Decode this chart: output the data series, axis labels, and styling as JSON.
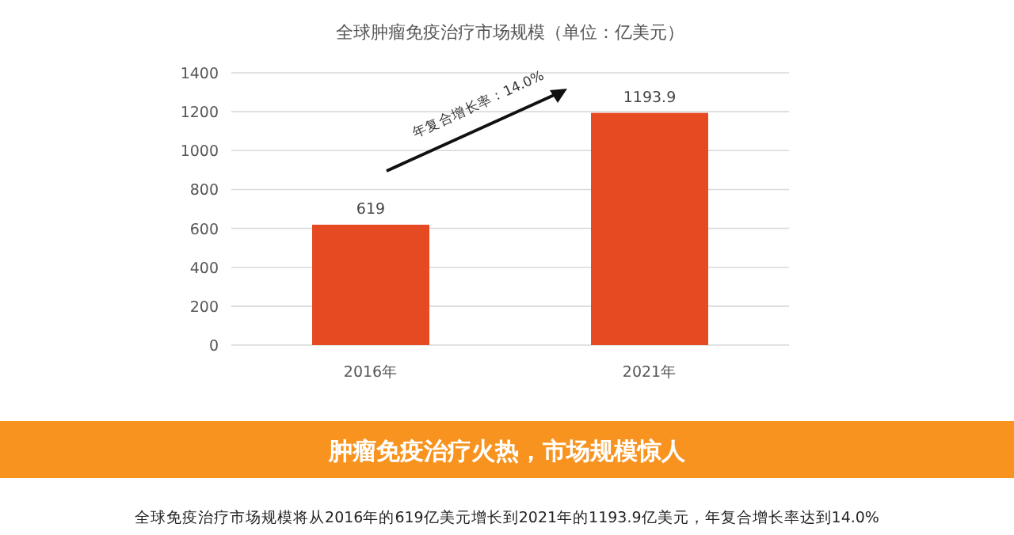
{
  "chart_data": {
    "type": "bar",
    "title": "全球肿瘤免疫治疗市场规模（单位：亿美元）",
    "categories": [
      "2016年",
      "2021年"
    ],
    "values": [
      619,
      1193.9
    ],
    "color": "#e64a22",
    "ylim": [
      0,
      1400
    ],
    "yticks": [
      0,
      200,
      400,
      600,
      800,
      1000,
      1200,
      1400
    ],
    "grid": "y",
    "data_labels": true,
    "annotations": [
      "年复合增长率：14.0%",
      "肿瘤免疫治疗火热，市场规模惊人",
      "全球免疫治疗市场规模将从2016年的619亿美元增长到2021年的1193.9亿美元，年复合增长率达到14.0%"
    ]
  }
}
